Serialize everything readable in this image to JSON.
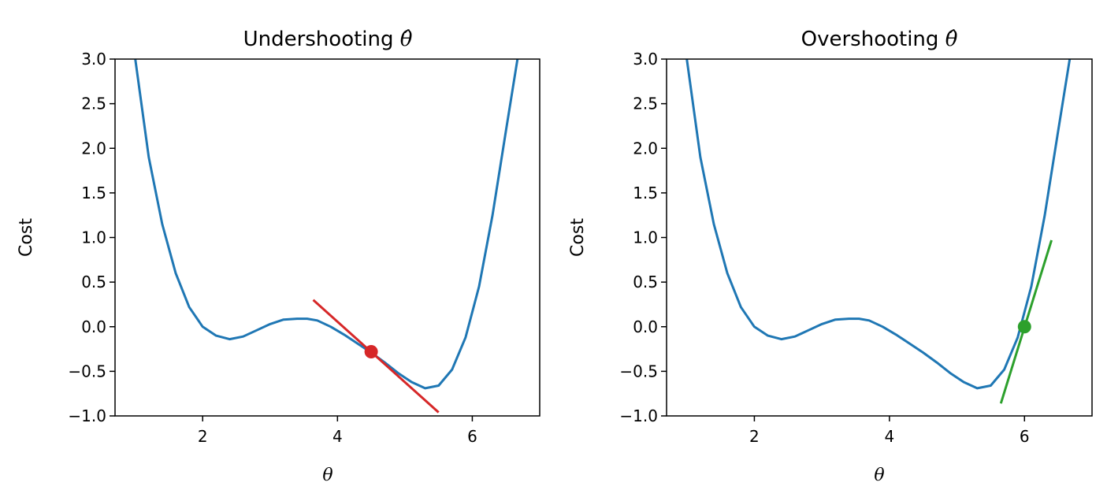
{
  "chart_data": [
    {
      "type": "line",
      "title": "Undershooting",
      "title_symbol": "θ̂",
      "xlabel": "θ",
      "ylabel": "Cost",
      "xlim": [
        0.7,
        7.0
      ],
      "ylim": [
        -1.0,
        3.0
      ],
      "xticks": [
        "2",
        "4",
        "6"
      ],
      "yticks": [
        "3.0",
        "2.5",
        "2.0",
        "1.5",
        "1.0",
        "0.5",
        "0.0",
        "−0.5",
        "−1.0"
      ],
      "grid": false,
      "curve_color": "#1f77b4",
      "series": [
        {
          "x": [
            0.7,
            1.0,
            1.2,
            1.4,
            1.6,
            1.8,
            2.0,
            2.2,
            2.4,
            2.6,
            2.8,
            3.0,
            3.2,
            3.4,
            3.55,
            3.7,
            3.9,
            4.1,
            4.3,
            4.5,
            4.7,
            4.9,
            5.1,
            5.3,
            5.5,
            5.7,
            5.9,
            6.1,
            6.3,
            6.5,
            6.67
          ],
          "y": [
            6.0,
            3.0,
            1.9,
            1.15,
            0.6,
            0.22,
            0.0,
            -0.1,
            -0.14,
            -0.11,
            -0.04,
            0.03,
            0.08,
            0.09,
            0.09,
            0.07,
            0.0,
            -0.09,
            -0.19,
            -0.29,
            -0.4,
            -0.52,
            -0.62,
            -0.69,
            -0.66,
            -0.48,
            -0.12,
            0.45,
            1.25,
            2.2,
            3.0
          ]
        }
      ],
      "point": {
        "x": 4.5,
        "y": -0.28,
        "color": "#d62728"
      },
      "tangent": {
        "x": [
          3.64,
          5.5
        ],
        "y": [
          0.3,
          -0.96
        ],
        "color": "#d62728"
      }
    },
    {
      "type": "line",
      "title": "Overshooting",
      "title_symbol": "θ̂",
      "xlabel": "θ",
      "ylabel": "Cost",
      "xlim": [
        0.7,
        7.0
      ],
      "ylim": [
        -1.0,
        3.0
      ],
      "xticks": [
        "2",
        "4",
        "6"
      ],
      "yticks": [
        "3.0",
        "2.5",
        "2.0",
        "1.5",
        "1.0",
        "0.5",
        "0.0",
        "−0.5",
        "−1.0"
      ],
      "grid": false,
      "curve_color": "#1f77b4",
      "series": [
        {
          "x": [
            0.7,
            1.0,
            1.2,
            1.4,
            1.6,
            1.8,
            2.0,
            2.2,
            2.4,
            2.6,
            2.8,
            3.0,
            3.2,
            3.4,
            3.55,
            3.7,
            3.9,
            4.1,
            4.3,
            4.5,
            4.7,
            4.9,
            5.1,
            5.3,
            5.5,
            5.7,
            5.9,
            6.1,
            6.3,
            6.5,
            6.67
          ],
          "y": [
            6.0,
            3.0,
            1.9,
            1.15,
            0.6,
            0.22,
            0.0,
            -0.1,
            -0.14,
            -0.11,
            -0.04,
            0.03,
            0.08,
            0.09,
            0.09,
            0.07,
            0.0,
            -0.09,
            -0.19,
            -0.29,
            -0.4,
            -0.52,
            -0.62,
            -0.69,
            -0.66,
            -0.48,
            -0.12,
            0.45,
            1.25,
            2.2,
            3.0
          ]
        }
      ],
      "point": {
        "x": 6.0,
        "y": 0.0,
        "color": "#2ca02c"
      },
      "tangent": {
        "x": [
          5.65,
          6.4
        ],
        "y": [
          -0.86,
          0.97
        ],
        "color": "#2ca02c"
      }
    }
  ]
}
